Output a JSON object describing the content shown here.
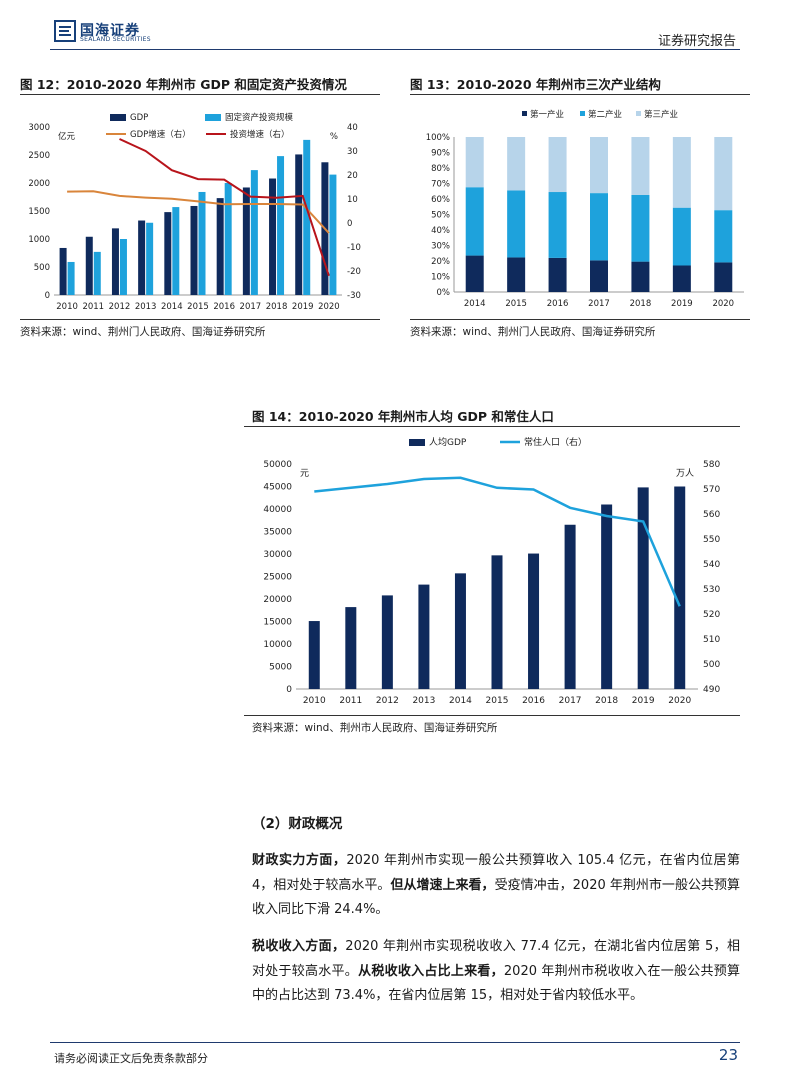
{
  "header": {
    "logo_cn": "国海证券",
    "logo_en": "SEALAND SECURITIES",
    "doc_type": "证券研究报告"
  },
  "fig12": {
    "title": "图 12：2010-2020 年荆州市 GDP 和固定资产投资情况",
    "source": "资料来源：wind、荆州门人民政府、国海证券研究所"
  },
  "fig13": {
    "title": "图 13：2010-2020 年荆州市三次产业结构",
    "source": "资料来源：wind、荆州门人民政府、国海证券研究所"
  },
  "fig14": {
    "title": "图 14：2010-2020 年荆州市人均 GDP 和常住人口",
    "source": "资料来源：wind、荆州市人民政府、国海证券研究所"
  },
  "chart_data": [
    {
      "type": "bar",
      "categories": [
        "2010",
        "2011",
        "2012",
        "2013",
        "2014",
        "2015",
        "2016",
        "2017",
        "2018",
        "2019",
        "2020"
      ],
      "series": [
        {
          "name": "GDP",
          "kind": "bar",
          "axis": "left",
          "color": "#0f2a5c",
          "values": [
            840,
            1040,
            1190,
            1330,
            1480,
            1590,
            1730,
            1920,
            2080,
            2510,
            2370
          ]
        },
        {
          "name": "固定资产投资规模",
          "kind": "bar",
          "axis": "left",
          "color": "#1ea2dc",
          "values": [
            590,
            770,
            1000,
            1290,
            1570,
            1840,
            2000,
            2230,
            2480,
            2770,
            2150
          ]
        },
        {
          "name": "GDP增速（右）",
          "kind": "line",
          "axis": "right",
          "color": "#d9853b",
          "values": [
            13.1,
            13.2,
            11.3,
            10.6,
            10.1,
            9.0,
            7.8,
            7.9,
            7.9,
            7.7,
            -4.2
          ]
        },
        {
          "name": "投资增速（右）",
          "kind": "line",
          "axis": "right",
          "color": "#b8141b",
          "values": [
            null,
            null,
            35.0,
            30.0,
            22.0,
            18.3,
            18.1,
            11.0,
            10.5,
            11.3,
            -22.0
          ]
        }
      ],
      "ylabel_left": "亿元",
      "ylabel_right": "%",
      "ylim_left": [
        0,
        3000
      ],
      "yticks_left": [
        0,
        500,
        1000,
        1500,
        2000,
        2500,
        3000
      ],
      "ylim_right": [
        -30,
        40
      ],
      "yticks_right": [
        -30,
        -20,
        -10,
        0,
        10,
        20,
        30,
        40
      ],
      "grid": false,
      "legend": "top"
    },
    {
      "type": "bar",
      "stacked": true,
      "categories": [
        "2014",
        "2015",
        "2016",
        "2017",
        "2018",
        "2019",
        "2020"
      ],
      "series": [
        {
          "name": "第一产业",
          "color": "#0f2a5c",
          "values": [
            23.5,
            22.3,
            22.0,
            20.4,
            19.6,
            17.1,
            19.1
          ]
        },
        {
          "name": "第二产业",
          "color": "#1ea2dc",
          "values": [
            44.1,
            43.2,
            42.5,
            43.4,
            43.0,
            37.3,
            33.7
          ]
        },
        {
          "name": "第三产业",
          "color": "#b7d4ea",
          "values": [
            32.4,
            34.5,
            35.5,
            36.2,
            37.4,
            45.6,
            47.2
          ]
        }
      ],
      "ylim": [
        0,
        100
      ],
      "yticks": [
        "0%",
        "10%",
        "20%",
        "30%",
        "40%",
        "50%",
        "60%",
        "70%",
        "80%",
        "90%",
        "100%"
      ],
      "grid": false,
      "legend": "top"
    },
    {
      "type": "bar",
      "categories": [
        "2010",
        "2011",
        "2012",
        "2013",
        "2014",
        "2015",
        "2016",
        "2017",
        "2018",
        "2019",
        "2020"
      ],
      "series": [
        {
          "name": "人均GDP",
          "kind": "bar",
          "axis": "left",
          "color": "#0f2a5c",
          "values": [
            15100,
            18200,
            20800,
            23200,
            25700,
            29700,
            30100,
            36500,
            41000,
            44800,
            45000
          ]
        },
        {
          "name": "常住人口（右）",
          "kind": "line",
          "axis": "right",
          "color": "#1ea2dc",
          "values": [
            569.0,
            570.5,
            572.0,
            574.0,
            574.5,
            570.5,
            569.8,
            562.5,
            559.2,
            557.0,
            523.1
          ]
        }
      ],
      "ylabel_left": "元",
      "ylabel_right": "万人",
      "ylim_left": [
        0,
        50000
      ],
      "yticks_left": [
        0,
        5000,
        10000,
        15000,
        20000,
        25000,
        30000,
        35000,
        40000,
        45000,
        50000
      ],
      "ylim_right": [
        490,
        580
      ],
      "yticks_right": [
        490,
        500,
        510,
        520,
        530,
        540,
        550,
        560,
        570,
        580
      ],
      "grid": false,
      "legend": "top"
    }
  ],
  "section": {
    "title": "（2）财政概况",
    "p1_bold1": "财政实力方面，",
    "p1_text1": "2020 年荆州市实现一般公共预算收入 105.4 亿元，在省内位居第 4，相对处于较高水平。",
    "p1_bold2": "但从增速上来看，",
    "p1_text2": "受疫情冲击，2020 年荆州市一般公共预算收入同比下滑 24.4%。",
    "p2_bold1": "税收收入方面，",
    "p2_text1": "2020 年荆州市实现税收收入 77.4 亿元，在湖北省内位居第 5，相对处于较高水平。",
    "p2_bold2": "从税收收入占比上来看，",
    "p2_text2": "2020 年荆州市税收收入在一般公共预算中的占比达到 73.4%，在省内位居第 15，相对处于省内较低水平。"
  },
  "footer": {
    "disclaimer": "请务必阅读正文后免责条款部分",
    "page": "23"
  }
}
